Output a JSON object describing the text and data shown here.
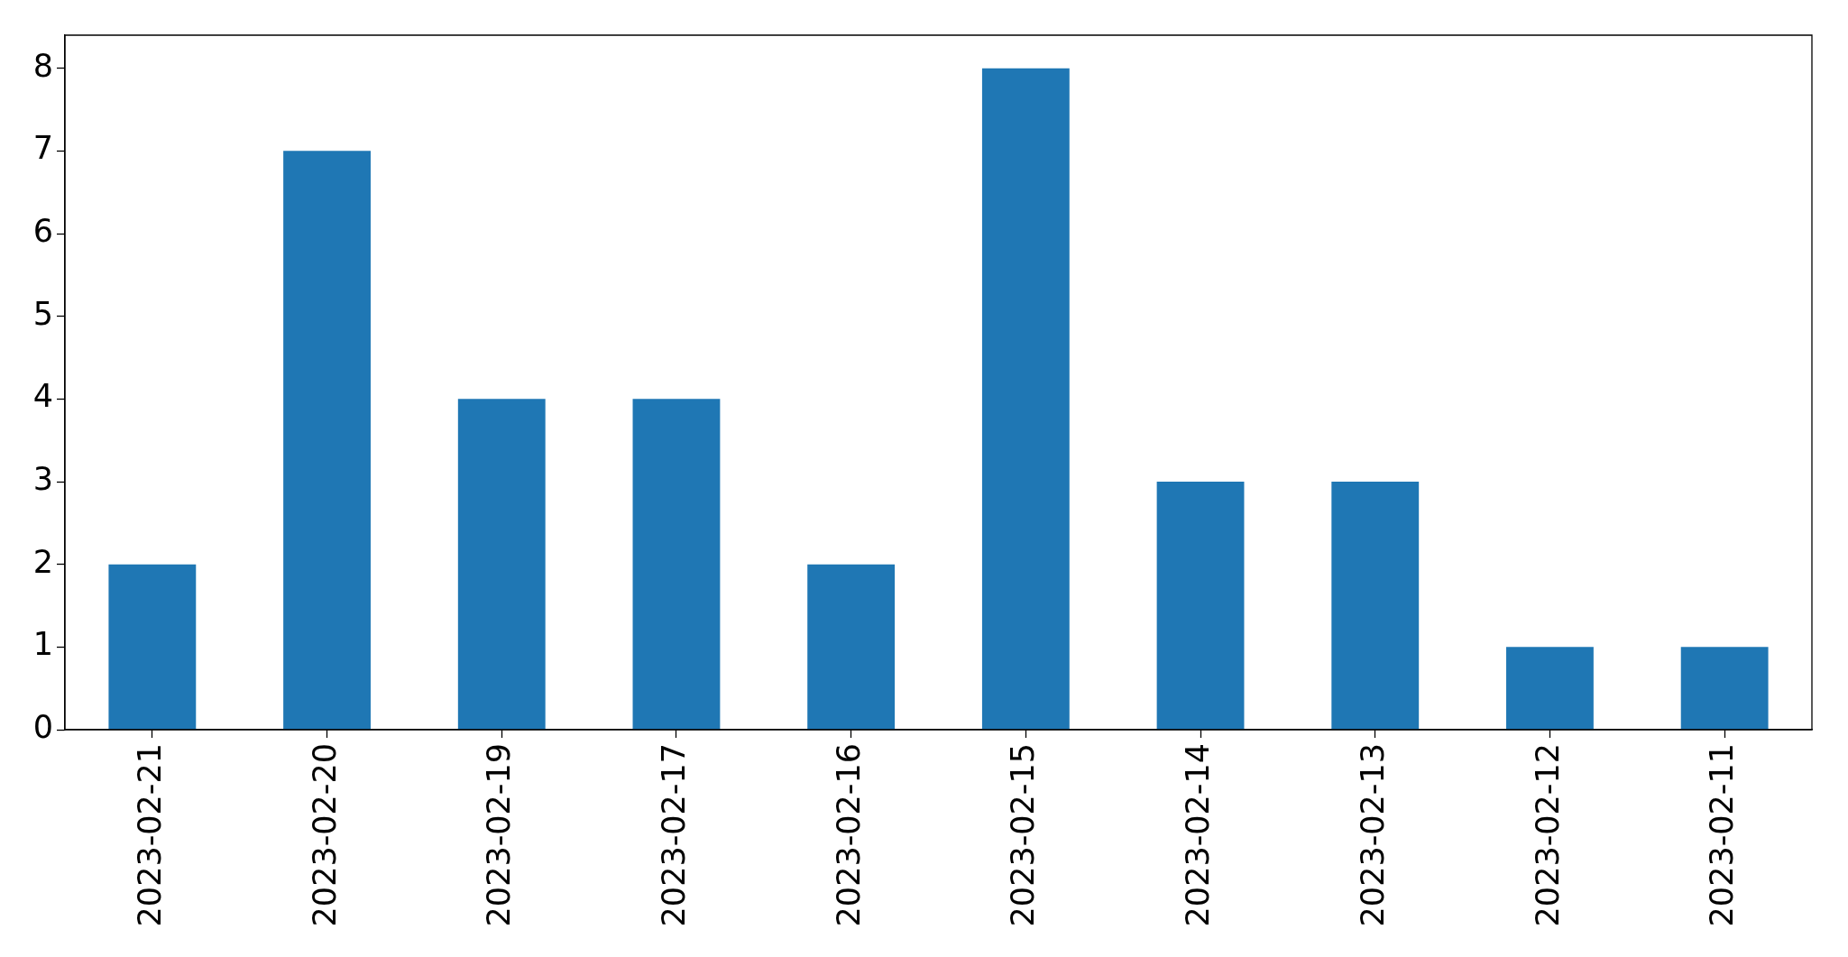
{
  "chart_data": {
    "type": "bar",
    "categories": [
      "2023-02-21",
      "2023-02-20",
      "2023-02-19",
      "2023-02-17",
      "2023-02-16",
      "2023-02-15",
      "2023-02-14",
      "2023-02-13",
      "2023-02-12",
      "2023-02-11"
    ],
    "values": [
      2,
      7,
      4,
      4,
      2,
      8,
      3,
      3,
      1,
      1
    ],
    "color": "#1f77b4",
    "ylim": [
      0,
      8.4
    ],
    "yticks": [
      0,
      1,
      2,
      3,
      4,
      5,
      6,
      7,
      8
    ]
  }
}
